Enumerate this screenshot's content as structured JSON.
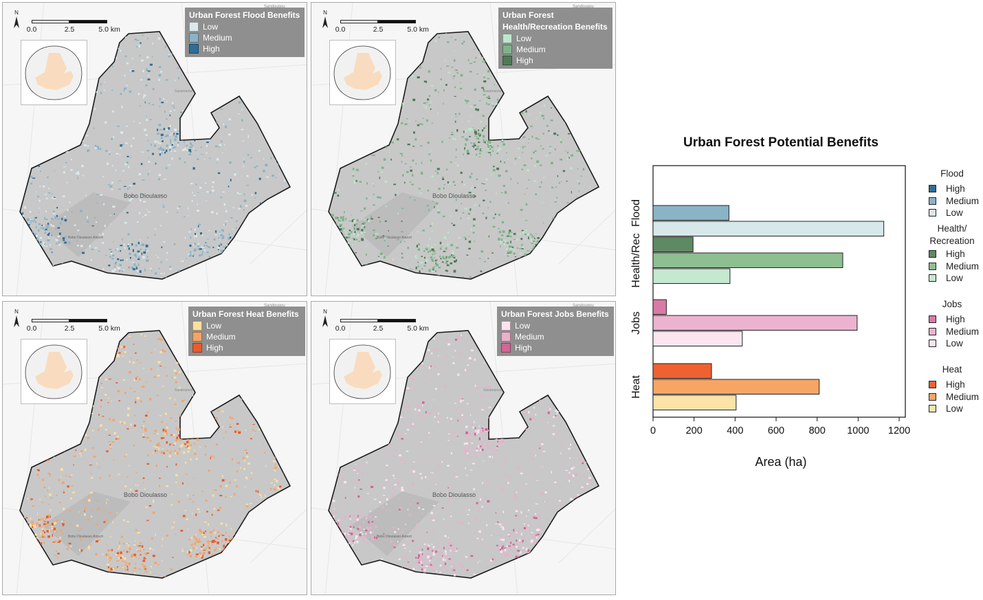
{
  "maps": [
    {
      "id": "flood",
      "title_lines": [
        "Urban Forest Flood Benefits"
      ],
      "legend": [
        {
          "label": "Low",
          "color": "#dbe9ec"
        },
        {
          "label": "Medium",
          "color": "#8ab3c6"
        },
        {
          "label": "High",
          "color": "#2e6e96"
        }
      ]
    },
    {
      "id": "health",
      "title_lines": [
        "Urban Forest",
        "Health/Recreation Benefits"
      ],
      "legend": [
        {
          "label": "Low",
          "color": "#bfe5cb"
        },
        {
          "label": "Medium",
          "color": "#7fb38a"
        },
        {
          "label": "High",
          "color": "#4f7a56"
        }
      ]
    },
    {
      "id": "heat",
      "title_lines": [
        "Urban Forest Heat Benefits"
      ],
      "legend": [
        {
          "label": "Low",
          "color": "#fde0a0"
        },
        {
          "label": "Medium",
          "color": "#f4a466"
        },
        {
          "label": "High",
          "color": "#ec5a2b"
        }
      ]
    },
    {
      "id": "jobs",
      "title_lines": [
        "Urban Forest Jobs Benefits"
      ],
      "legend": [
        {
          "label": "Low",
          "color": "#fbe3ef"
        },
        {
          "label": "Medium",
          "color": "#ebb0cc"
        },
        {
          "label": "High",
          "color": "#d46596"
        }
      ]
    }
  ],
  "map_common": {
    "scale_labels": [
      "0.0",
      "2.5",
      "5.0 km"
    ],
    "north_label": "N",
    "city_label": "Bobo Dioulasso",
    "airport_label": "Bobo Dioulasso Airport",
    "top_place_label": "Sandougou",
    "side_place_label": "Sasamanso",
    "inset_fill": "#f9dcbf",
    "map_fill": "#c8c8c8"
  },
  "chart_data": {
    "type": "bar",
    "orientation": "horizontal",
    "title": "Urban Forest Potential Benefits",
    "xlabel": "Area (ha)",
    "ylabel": "",
    "xlim": [
      0,
      1230
    ],
    "xticks": [
      0,
      200,
      400,
      600,
      800,
      1000,
      1200
    ],
    "groups": [
      {
        "name": "Flood",
        "legend_title": "Flood",
        "bars": [
          {
            "level": "High",
            "value": 0,
            "color": "#2e6e96"
          },
          {
            "level": "Medium",
            "value": 370,
            "color": "#8ab3c6"
          },
          {
            "level": "Low",
            "value": 1125,
            "color": "#d7e8ea"
          }
        ]
      },
      {
        "name": "Health/Rec",
        "legend_title": "Health/\nRecreation",
        "bars": [
          {
            "level": "High",
            "value": 195,
            "color": "#5d8a63"
          },
          {
            "level": "Medium",
            "value": 925,
            "color": "#8dbf91"
          },
          {
            "level": "Low",
            "value": 375,
            "color": "#c5e8d0"
          }
        ]
      },
      {
        "name": "Jobs",
        "legend_title": "Jobs",
        "bars": [
          {
            "level": "High",
            "value": 65,
            "color": "#d97aa6"
          },
          {
            "level": "Medium",
            "value": 995,
            "color": "#ebb3cf"
          },
          {
            "level": "Low",
            "value": 435,
            "color": "#fbe6f0"
          }
        ]
      },
      {
        "name": "Heat",
        "legend_title": "Heat",
        "bars": [
          {
            "level": "High",
            "value": 285,
            "color": "#ef6131"
          },
          {
            "level": "Medium",
            "value": 810,
            "color": "#f7a565"
          },
          {
            "level": "Low",
            "value": 405,
            "color": "#fde3a8"
          }
        ]
      }
    ]
  }
}
